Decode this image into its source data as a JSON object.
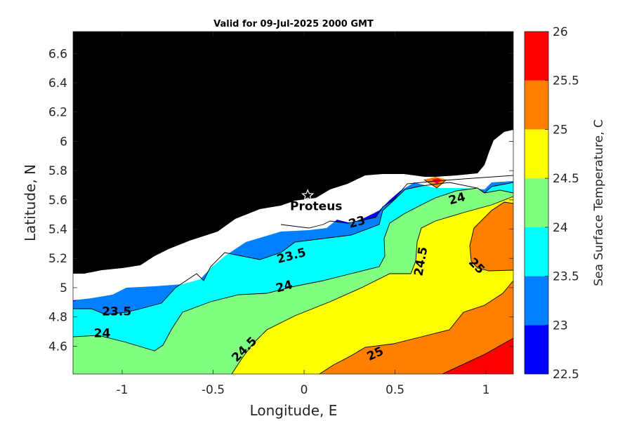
{
  "chart_data": {
    "type": "contour",
    "title": "Valid for 09-Jul-2025 2000 GMT",
    "xlabel": "Longitude, E",
    "ylabel": "Latitude, N",
    "xlim": [
      -1.27,
      1.15
    ],
    "ylim": [
      4.41,
      6.75
    ],
    "xticks": [
      -1,
      -0.5,
      0,
      0.5,
      1
    ],
    "xtick_labels": [
      "-1",
      "-0.5",
      "0",
      "0.5",
      "1"
    ],
    "yticks": [
      4.6,
      4.8,
      5,
      5.2,
      5.4,
      5.6,
      5.8,
      6,
      6.2,
      6.4,
      6.6
    ],
    "ytick_labels": [
      "4.6",
      "4.8",
      "5",
      "5.2",
      "5.4",
      "5.6",
      "5.8",
      "6",
      "6.2",
      "6.4",
      "6.6"
    ],
    "colorbar": {
      "label": "Sea Surface Temperature, C",
      "levels": [
        22.5,
        23,
        23.5,
        24,
        24.5,
        25,
        25.5,
        26
      ],
      "tick_labels": [
        "22.5",
        "23",
        "23.5",
        "24",
        "24.5",
        "25",
        "25.5",
        "26"
      ],
      "colors": [
        "#0000ff",
        "#0080ff",
        "#00ffff",
        "#80ff80",
        "#ffff00",
        "#ff8000",
        "#ff0000"
      ]
    },
    "land_color": "#000000",
    "nodata_color": "#ffffff",
    "contour_labels": [
      {
        "text": "23",
        "x": 0.29,
        "y": 5.45,
        "angle": -15
      },
      {
        "text": "23.5",
        "x": -0.07,
        "y": 5.22,
        "angle": -15
      },
      {
        "text": "24",
        "x": -0.11,
        "y": 5.01,
        "angle": -15
      },
      {
        "text": "23.5",
        "x": -1.03,
        "y": 4.84,
        "angle": 0
      },
      {
        "text": "24",
        "x": -1.11,
        "y": 4.69,
        "angle": 0
      },
      {
        "text": "24.5",
        "x": -0.33,
        "y": 4.58,
        "angle": -45
      },
      {
        "text": "25",
        "x": 0.39,
        "y": 4.55,
        "angle": -25
      },
      {
        "text": "24.5",
        "x": 0.64,
        "y": 5.18,
        "angle": -80
      },
      {
        "text": "25",
        "x": 0.95,
        "y": 5.15,
        "angle": 45
      },
      {
        "text": "24",
        "x": 0.84,
        "y": 5.61,
        "angle": -15
      }
    ],
    "markers": [
      {
        "name": "Proteus",
        "symbol": "star",
        "lon": 0.02,
        "lat": 5.63
      }
    ]
  }
}
